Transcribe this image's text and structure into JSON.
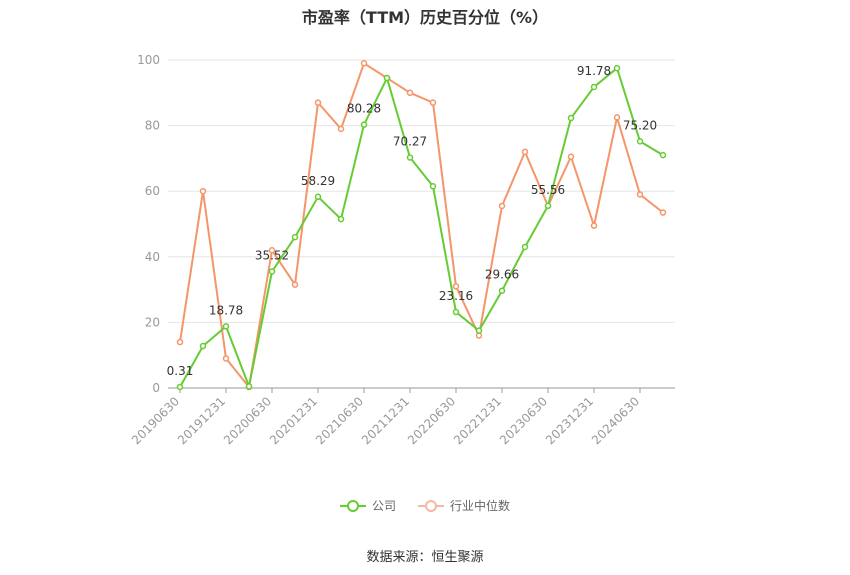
{
  "title": "市盈率（TTM）历史百分位（%）",
  "source": "数据来源：恒生聚源",
  "colors": {
    "company": "#66cc33",
    "industry": "#f4956a",
    "grid": "#e6e6e6",
    "axis": "#999999"
  },
  "chart_data": {
    "type": "line",
    "title": "市盈率（TTM）历史百分位（%）",
    "ylim": [
      0,
      100
    ],
    "yticks": [
      0,
      20,
      40,
      60,
      80,
      100
    ],
    "x": [
      "20190630",
      "20190930",
      "20191231",
      "20200331",
      "20200630",
      "20200930",
      "20201231",
      "20210331",
      "20210630",
      "20210930",
      "20211231",
      "20220331",
      "20220630",
      "20220930",
      "20221231",
      "20230331",
      "20230630",
      "20230930",
      "20231231",
      "20240331",
      "20240630",
      "20240930"
    ],
    "xticks": [
      "20190630",
      "20191231",
      "20200630",
      "20201231",
      "20210630",
      "20211231",
      "20220630",
      "20221231",
      "20230630",
      "20231231",
      "20240630"
    ],
    "grid": true,
    "legend": "bottom-center",
    "series": [
      {
        "name": "公司",
        "values": [
          0.31,
          12.8,
          18.78,
          0.5,
          35.52,
          46.0,
          58.29,
          51.5,
          80.28,
          94.5,
          70.27,
          61.5,
          23.16,
          17.5,
          29.66,
          43.0,
          55.56,
          82.3,
          91.78,
          97.5,
          75.2,
          71.0
        ],
        "labels": [
          "0.31",
          "",
          "18.78",
          "",
          "35.52",
          "",
          "58.29",
          "",
          "80.28",
          "",
          "70.27",
          "",
          "23.16",
          "",
          "29.66",
          "",
          "55.56",
          "",
          "91.78",
          "",
          "75.20",
          ""
        ]
      },
      {
        "name": "行业中位数",
        "values": [
          14.0,
          60.0,
          9.0,
          0.3,
          42.0,
          31.5,
          87.0,
          79.0,
          99.0,
          94.5,
          90.0,
          87.0,
          31.0,
          16.0,
          55.5,
          72.0,
          55.5,
          70.5,
          49.5,
          82.5,
          59.0,
          53.5
        ]
      }
    ]
  }
}
